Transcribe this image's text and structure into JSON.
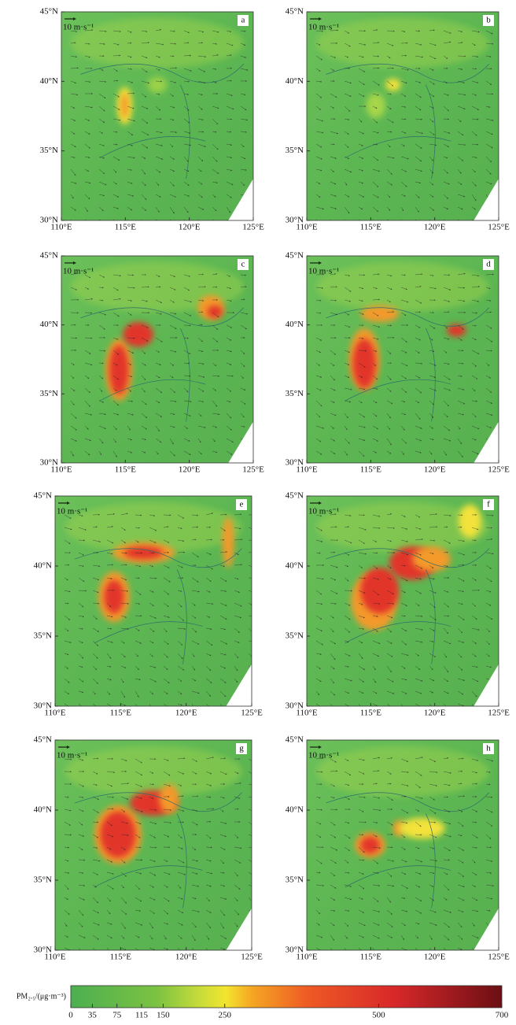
{
  "panels": [
    {
      "label": "a"
    },
    {
      "label": "b"
    },
    {
      "label": "c"
    },
    {
      "label": "d"
    },
    {
      "label": "e"
    },
    {
      "label": "f"
    },
    {
      "label": "g"
    },
    {
      "label": "h"
    }
  ],
  "wind_scale": "10 m·s⁻¹",
  "lat_labels": [
    "45°N",
    "40°N",
    "35°N",
    "30°N"
  ],
  "lon_labels": [
    "110°E",
    "115°E",
    "120°E",
    "125°E"
  ],
  "colorbar": {
    "label": "PM₂.₅/(μg·m⁻³)",
    "range": [
      0,
      700
    ],
    "ticks": [
      0,
      35,
      75,
      115,
      150,
      250,
      500,
      700
    ]
  }
}
